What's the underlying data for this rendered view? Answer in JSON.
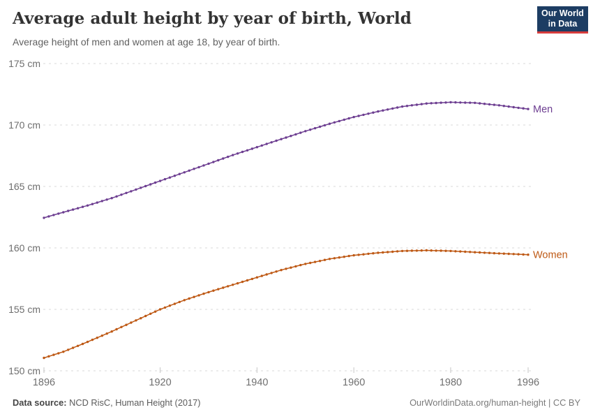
{
  "header": {
    "title": "Average adult height by year of birth, World",
    "subtitle": "Average height of men and women at age 18, by year of birth."
  },
  "logo": {
    "line1": "Our World",
    "line2": "in Data",
    "bg_color": "#1d3d63",
    "accent_color": "#d73c3c"
  },
  "footer": {
    "source_label": "Data source:",
    "source_value": " NCD RisC, Human Height (2017)",
    "right_text": "OurWorldinData.org/human-height | CC BY"
  },
  "chart_data": {
    "type": "line",
    "title": "Average adult height by year of birth, World",
    "xlabel": "",
    "ylabel": "",
    "xlim": [
      1896,
      1996
    ],
    "ylim": [
      150,
      175
    ],
    "x_ticks": [
      1896,
      1920,
      1940,
      1960,
      1980,
      1996
    ],
    "y_ticks": [
      150,
      155,
      160,
      165,
      170,
      175
    ],
    "y_tick_suffix": " cm",
    "grid": "horizontal-dashed",
    "grid_color": "#dadada",
    "tick_label_color": "#6e6e6e",
    "legend_position": "line-end-labels",
    "marker_every_years": 1,
    "series": [
      {
        "name": "Men",
        "color": "#6d3e91",
        "points": [
          [
            1896,
            162.45
          ],
          [
            1900,
            162.9
          ],
          [
            1905,
            163.45
          ],
          [
            1910,
            164.05
          ],
          [
            1915,
            164.75
          ],
          [
            1920,
            165.45
          ],
          [
            1925,
            166.15
          ],
          [
            1930,
            166.85
          ],
          [
            1935,
            167.55
          ],
          [
            1940,
            168.2
          ],
          [
            1945,
            168.85
          ],
          [
            1950,
            169.5
          ],
          [
            1955,
            170.1
          ],
          [
            1960,
            170.65
          ],
          [
            1965,
            171.1
          ],
          [
            1970,
            171.5
          ],
          [
            1975,
            171.75
          ],
          [
            1980,
            171.85
          ],
          [
            1985,
            171.8
          ],
          [
            1990,
            171.6
          ],
          [
            1996,
            171.3
          ]
        ]
      },
      {
        "name": "Women",
        "color": "#be5915",
        "points": [
          [
            1896,
            151.05
          ],
          [
            1900,
            151.55
          ],
          [
            1905,
            152.35
          ],
          [
            1910,
            153.2
          ],
          [
            1915,
            154.1
          ],
          [
            1920,
            155.0
          ],
          [
            1925,
            155.75
          ],
          [
            1930,
            156.4
          ],
          [
            1935,
            157.0
          ],
          [
            1940,
            157.6
          ],
          [
            1945,
            158.2
          ],
          [
            1950,
            158.7
          ],
          [
            1955,
            159.1
          ],
          [
            1960,
            159.4
          ],
          [
            1965,
            159.6
          ],
          [
            1970,
            159.75
          ],
          [
            1975,
            159.8
          ],
          [
            1980,
            159.75
          ],
          [
            1985,
            159.65
          ],
          [
            1990,
            159.55
          ],
          [
            1996,
            159.45
          ]
        ]
      }
    ]
  }
}
